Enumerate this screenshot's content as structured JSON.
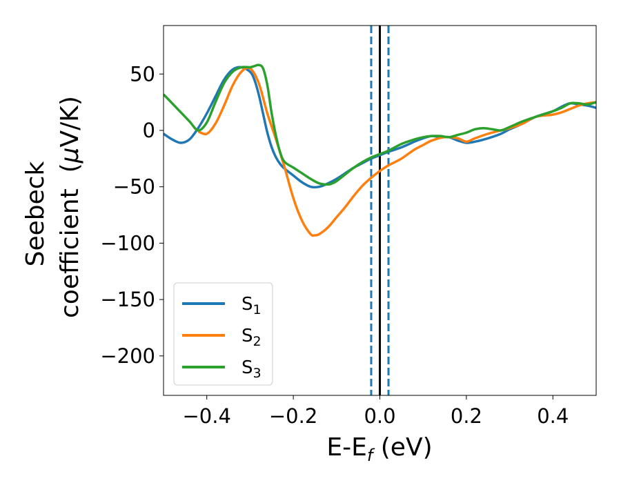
{
  "chart_data": {
    "type": "line",
    "xlabel": "E-E",
    "xlabel_sub": "f",
    "xlabel_unit": " (eV)",
    "ylabel_line1": "Seebeck",
    "ylabel_line2": "coefficient",
    "ylabel_unit_pre": "(",
    "ylabel_unit_mu": "μ",
    "ylabel_unit_post": "V/K)",
    "xlim": [
      -0.5,
      0.5
    ],
    "ylim": [
      -235,
      93
    ],
    "xticks": [
      -0.4,
      -0.2,
      0.0,
      0.2,
      0.4
    ],
    "xtick_labels": [
      "−0.4",
      "−0.2",
      "0.0",
      "0.2",
      "0.4"
    ],
    "yticks": [
      50,
      0,
      -50,
      -100,
      -150,
      -200
    ],
    "ytick_labels": [
      "50",
      "0",
      "−50",
      "−100",
      "−150",
      "−200"
    ],
    "grid": false,
    "legend_position": "lower-left",
    "vlines": [
      {
        "x": 0.0,
        "style": "solid",
        "color": "#000000"
      },
      {
        "x": -0.02,
        "style": "dashed",
        "color": "#1f77b4"
      },
      {
        "x": 0.02,
        "style": "dashed",
        "color": "#1f77b4"
      }
    ],
    "series": [
      {
        "name": "S",
        "name_sub": "1",
        "color": "#1f77b4",
        "x": [
          -0.5,
          -0.48,
          -0.46,
          -0.44,
          -0.42,
          -0.4,
          -0.38,
          -0.36,
          -0.34,
          -0.32,
          -0.3,
          -0.29,
          -0.28,
          -0.27,
          -0.26,
          -0.25,
          -0.24,
          -0.23,
          -0.22,
          -0.2,
          -0.18,
          -0.16,
          -0.14,
          -0.12,
          -0.1,
          -0.08,
          -0.06,
          -0.04,
          -0.02,
          0.0,
          0.02,
          0.05,
          0.08,
          0.1,
          0.12,
          0.14,
          0.16,
          0.18,
          0.2,
          0.22,
          0.25,
          0.28,
          0.3,
          0.33,
          0.36,
          0.4,
          0.42,
          0.44,
          0.46,
          0.48,
          0.5
        ],
        "y": [
          -3,
          -8,
          -11,
          -8,
          2,
          15,
          30,
          45,
          54,
          56,
          52,
          45,
          32,
          15,
          -2,
          -15,
          -24,
          -30,
          -34,
          -40,
          -46,
          -50,
          -50,
          -47,
          -43,
          -38,
          -33,
          -29,
          -25,
          -22,
          -19,
          -15,
          -10,
          -7,
          -5,
          -6,
          -6,
          -9,
          -11,
          -10,
          -7,
          -3,
          1,
          6,
          12,
          17,
          21,
          24,
          23,
          22,
          20
        ]
      },
      {
        "name": "S",
        "name_sub": "2",
        "color": "#ff7f0e",
        "x": [
          -0.42,
          -0.4,
          -0.38,
          -0.36,
          -0.34,
          -0.32,
          -0.3,
          -0.28,
          -0.26,
          -0.24,
          -0.22,
          -0.2,
          -0.18,
          -0.16,
          -0.15,
          -0.14,
          -0.12,
          -0.1,
          -0.08,
          -0.06,
          -0.04,
          -0.02,
          0.0,
          0.02,
          0.05,
          0.08,
          0.1,
          0.12,
          0.15,
          0.18,
          0.2,
          0.22,
          0.25,
          0.28,
          0.3,
          0.33,
          0.36,
          0.4,
          0.42,
          0.44,
          0.46,
          0.48,
          0.5
        ],
        "y": [
          -1,
          -3,
          6,
          22,
          40,
          52,
          55,
          42,
          15,
          -8,
          -33,
          -60,
          -80,
          -92,
          -93,
          -92,
          -86,
          -77,
          -68,
          -58,
          -49,
          -42,
          -36,
          -31,
          -25,
          -17,
          -13,
          -9,
          -6,
          -7,
          -10,
          -7,
          -3,
          0,
          2,
          6,
          12,
          14,
          16,
          19,
          22,
          24,
          25
        ]
      },
      {
        "name": "S",
        "name_sub": "3",
        "color": "#2ca02c",
        "x": [
          -0.5,
          -0.47,
          -0.44,
          -0.42,
          -0.4,
          -0.38,
          -0.36,
          -0.34,
          -0.32,
          -0.3,
          -0.29,
          -0.28,
          -0.27,
          -0.26,
          -0.25,
          -0.24,
          -0.23,
          -0.22,
          -0.2,
          -0.18,
          -0.16,
          -0.14,
          -0.12,
          -0.11,
          -0.1,
          -0.08,
          -0.06,
          -0.04,
          -0.02,
          0.0,
          0.02,
          0.05,
          0.08,
          0.1,
          0.12,
          0.14,
          0.16,
          0.18,
          0.2,
          0.22,
          0.24,
          0.26,
          0.28,
          0.3,
          0.33,
          0.36,
          0.4,
          0.42,
          0.44,
          0.46,
          0.48,
          0.5
        ],
        "y": [
          32,
          20,
          8,
          0,
          7,
          25,
          42,
          52,
          56,
          56,
          57,
          58,
          55,
          40,
          15,
          -5,
          -20,
          -28,
          -33,
          -38,
          -43,
          -47,
          -48,
          -47,
          -45,
          -39,
          -33,
          -28,
          -24,
          -21,
          -18,
          -12,
          -8,
          -6,
          -5,
          -5,
          -6,
          -4,
          -2,
          1,
          2,
          1,
          0,
          3,
          8,
          12,
          17,
          20,
          24,
          24,
          23,
          25
        ]
      }
    ]
  }
}
